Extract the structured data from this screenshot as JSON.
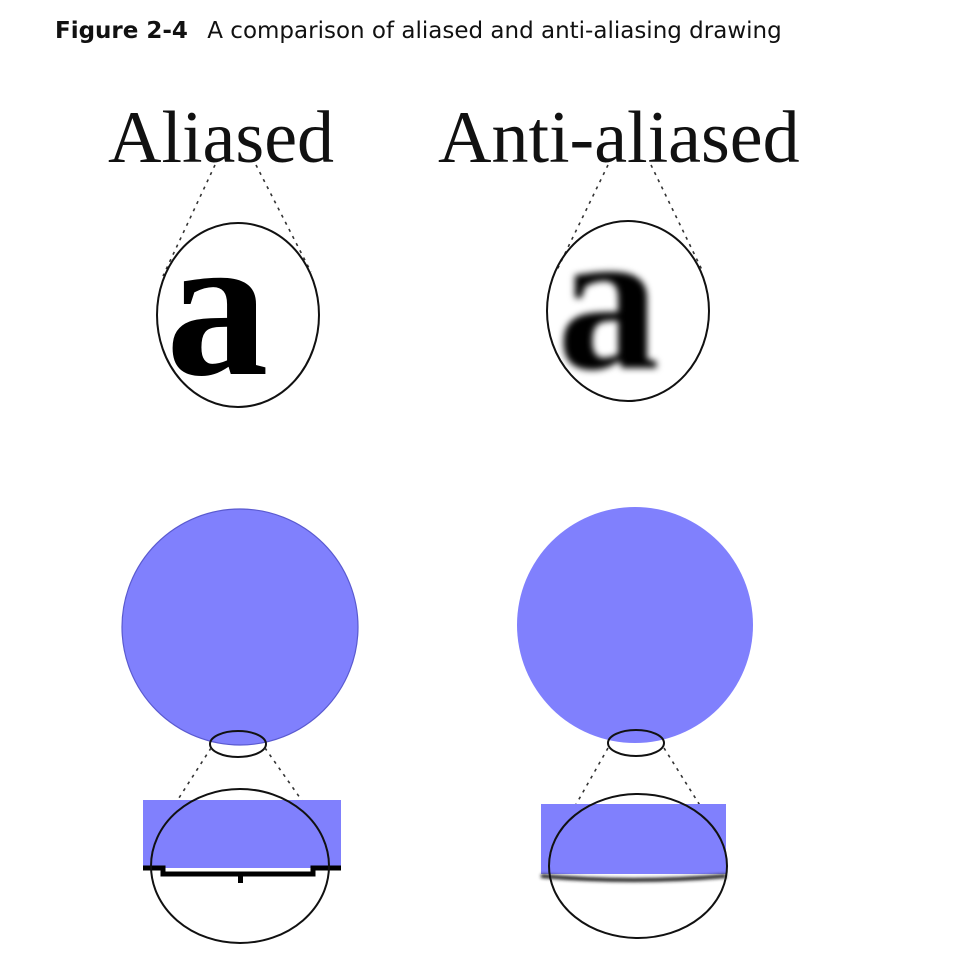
{
  "caption": {
    "figure_number": "Figure 2-4",
    "text": "A comparison of aliased and anti-aliasing drawing"
  },
  "panels": {
    "aliased": {
      "word": "Aliased",
      "magnified_glyph": "a"
    },
    "anti_aliased": {
      "word": "Anti-aliased",
      "magnified_glyph": "a"
    }
  },
  "colors": {
    "fill": "#8080fd",
    "outline": "#111111",
    "background": "#ffffff"
  }
}
